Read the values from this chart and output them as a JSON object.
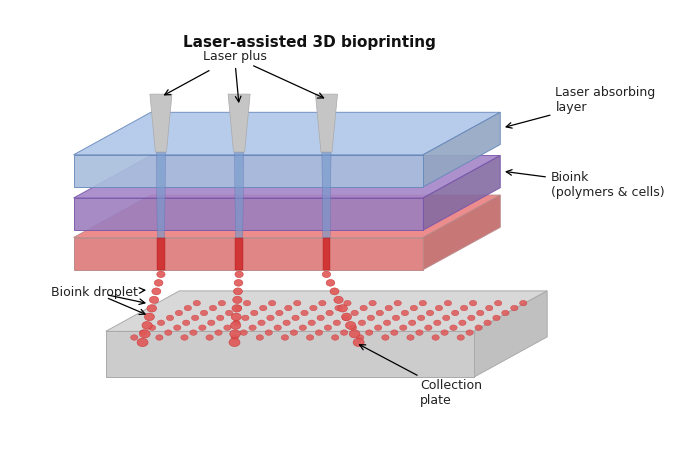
{
  "title": "Laser-assisted 3D bioprinting",
  "title_fontsize": 11,
  "title_fontweight": "bold",
  "bg_color": "#ffffff",
  "label_laser_plus": "Laser plus",
  "label_laser_absorbing": "Laser absorbing\nlayer",
  "label_bioink": "Bioink\n(polymers & cells)",
  "label_bioink_droplet": "Bioink droplet",
  "label_collection_plate": "Collection\nplate",
  "layer_blue_color": "#a8bedd",
  "layer_blue_top": "#b8cee8",
  "layer_purple_color": "#9c7fbf",
  "layer_purple_top": "#b090cc",
  "layer_pink_color": "#e08080",
  "layer_pink_top": "#e89090",
  "plate_top_color": "#d8d8d8",
  "plate_side_color": "#c0c0c0",
  "plate_front_color": "#cccccc",
  "droplet_color": "#e05858",
  "droplet_edge": "#cc3333",
  "nozzle_top_color": "#c8c8c8",
  "nozzle_side_color": "#b0b0b0",
  "beam_blue_color": "#7799cc",
  "beam_red_color": "#cc2222",
  "label_fontsize": 9,
  "ann_color": "#222222"
}
